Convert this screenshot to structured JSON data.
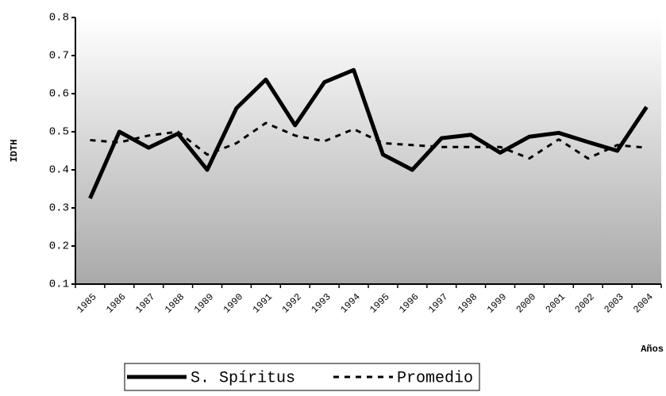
{
  "chart_data": {
    "type": "line",
    "y_label": "IDTH",
    "x_label": "Años",
    "categories": [
      "1985",
      "1986",
      "1987",
      "1988",
      "1989",
      "1990",
      "1991",
      "1992",
      "1993",
      "1994",
      "1995",
      "1996",
      "1997",
      "1998",
      "1999",
      "2000",
      "2001",
      "2002",
      "2003",
      "2004"
    ],
    "series": [
      {
        "name": "S. Spíritus",
        "color": "#000000",
        "dash": "solid",
        "values": [
          0.325,
          0.5,
          0.458,
          0.495,
          0.4,
          0.562,
          0.637,
          0.517,
          0.63,
          0.662,
          0.44,
          0.4,
          0.483,
          0.492,
          0.445,
          0.487,
          0.497,
          0.473,
          0.45,
          0.565
        ]
      },
      {
        "name": "Promedio",
        "color": "#000000",
        "dash": "dashed",
        "values": [
          0.478,
          0.472,
          0.49,
          0.5,
          0.44,
          0.47,
          0.523,
          0.49,
          0.475,
          0.507,
          0.47,
          0.465,
          0.46,
          0.46,
          0.46,
          0.43,
          0.48,
          0.43,
          0.465,
          0.458
        ]
      }
    ],
    "ylim": [
      0.1,
      0.8
    ],
    "yticks": [
      0.1,
      0.2,
      0.3,
      0.4,
      0.5,
      0.6,
      0.7,
      0.8
    ],
    "legend": "bottom"
  }
}
